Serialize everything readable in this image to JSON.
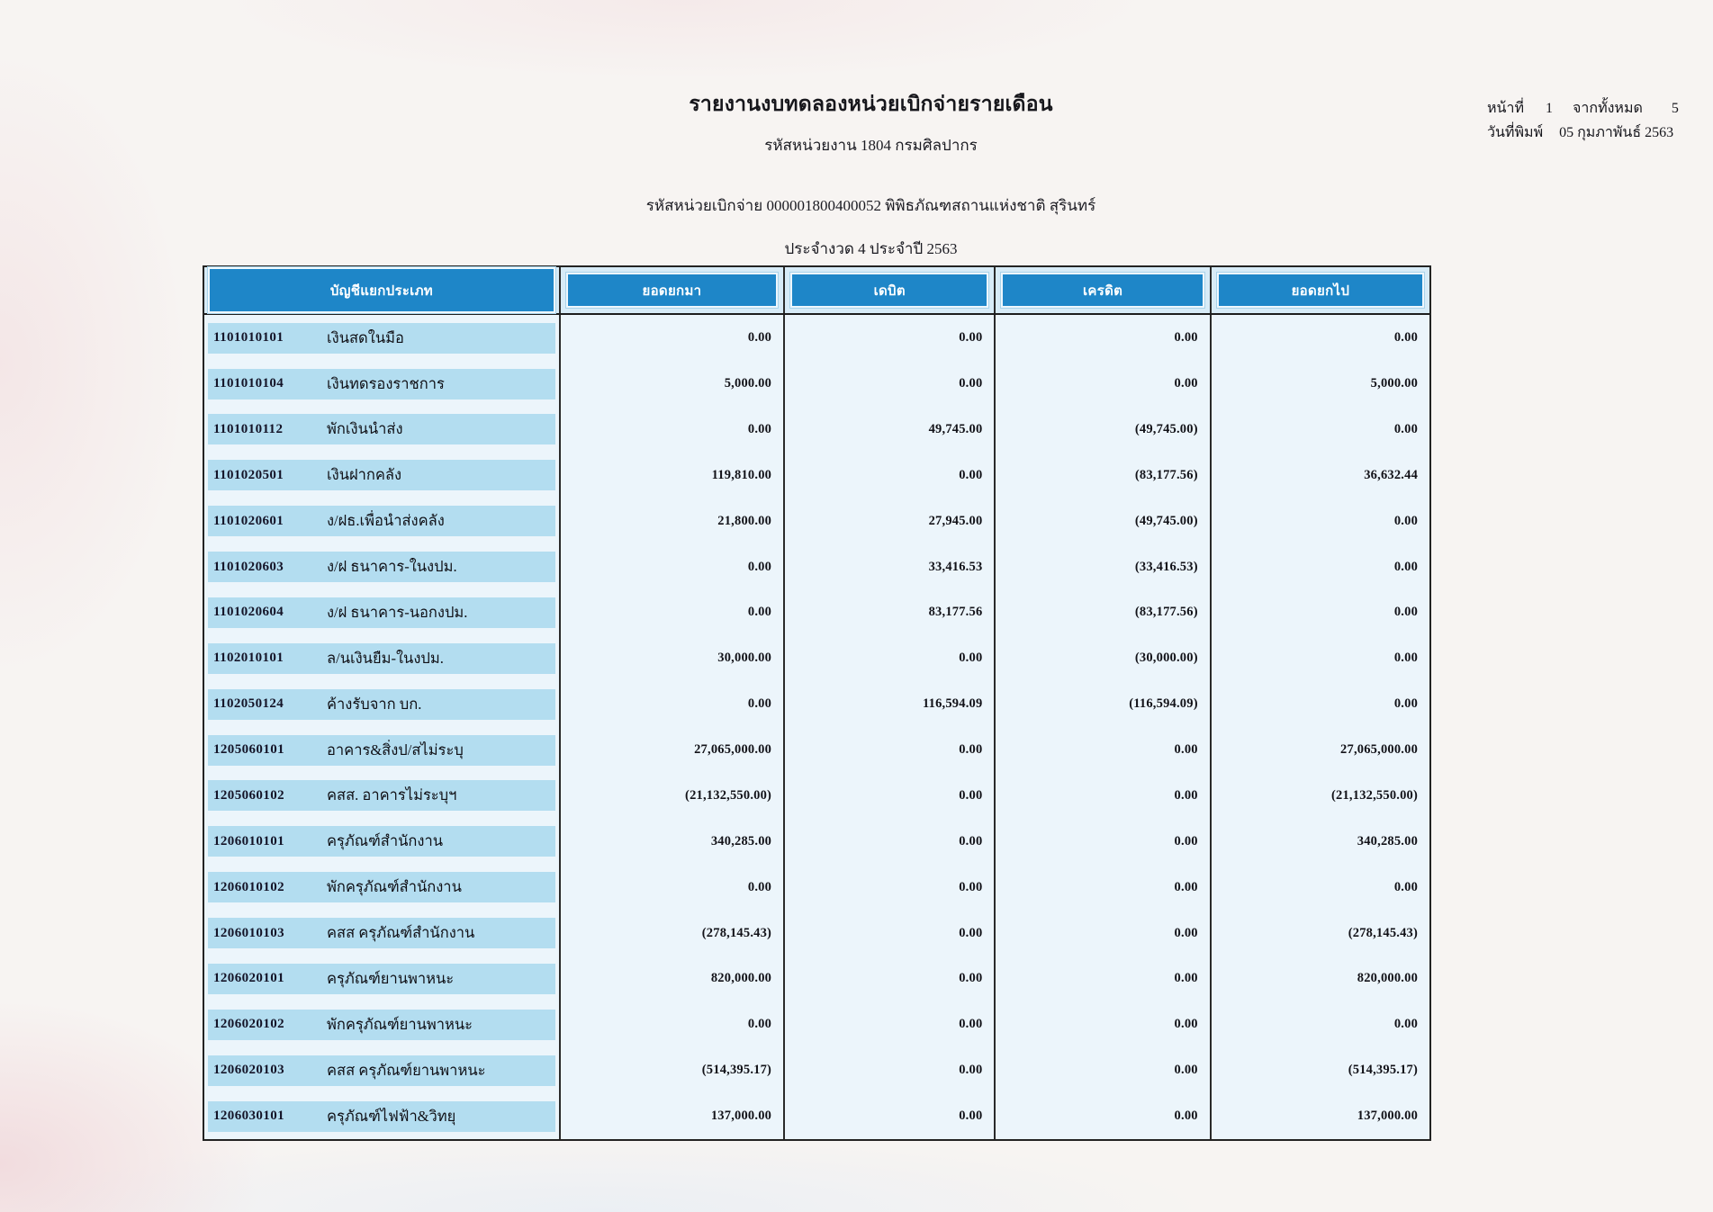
{
  "page": {
    "title": "รายงานงบทดลองหน่วยเบิกจ่ายรายเดือน",
    "agency_line": "รหัสหน่วยงาน 1804 กรมศิลปากร",
    "unit_line": "รหัสหน่วยเบิกจ่าย 000001800400052 พิพิธภัณฑสถานแห่งชาติ สุรินทร์",
    "period_line": "ประจำงวด 4 ประจำปี 2563",
    "page_info": {
      "page_label": "หน้าที่",
      "page_number": "1",
      "total_label": "จากทั้งหมด",
      "total_pages": "5",
      "print_date_label": "วันที่พิมพ์",
      "print_date": "05 กุมภาพันธ์ 2563"
    }
  },
  "colors": {
    "header_bar_blue": "#1e86c8",
    "header_cell_bg": "#d7ebf7",
    "row_band_blue": "#b3ddf0",
    "table_bg": "#ecf5fb",
    "border_black": "#232323",
    "paper_bg": "#f7f4f2"
  },
  "table": {
    "headers": [
      "บัญชีแยกประเภท",
      "ยอดยกมา",
      "เดบิต",
      "เครดิต",
      "ยอดยกไป"
    ],
    "rows": [
      {
        "code": "1101010101",
        "name": "เงินสดในมือ",
        "carry_forward": "0.00",
        "debit": "0.00",
        "credit": "0.00",
        "balance": "0.00"
      },
      {
        "code": "1101010104",
        "name": "เงินทดรองราชการ",
        "carry_forward": "5,000.00",
        "debit": "0.00",
        "credit": "0.00",
        "balance": "5,000.00"
      },
      {
        "code": "1101010112",
        "name": "พักเงินนำส่ง",
        "carry_forward": "0.00",
        "debit": "49,745.00",
        "credit": "(49,745.00)",
        "balance": "0.00"
      },
      {
        "code": "1101020501",
        "name": "เงินฝากคลัง",
        "carry_forward": "119,810.00",
        "debit": "0.00",
        "credit": "(83,177.56)",
        "balance": "36,632.44"
      },
      {
        "code": "1101020601",
        "name": "ง/ฝธ.เพื่อนำส่งคลัง",
        "carry_forward": "21,800.00",
        "debit": "27,945.00",
        "credit": "(49,745.00)",
        "balance": "0.00"
      },
      {
        "code": "1101020603",
        "name": "ง/ฝ ธนาคาร-ในงปม.",
        "carry_forward": "0.00",
        "debit": "33,416.53",
        "credit": "(33,416.53)",
        "balance": "0.00"
      },
      {
        "code": "1101020604",
        "name": "ง/ฝ ธนาคาร-นอกงปม.",
        "carry_forward": "0.00",
        "debit": "83,177.56",
        "credit": "(83,177.56)",
        "balance": "0.00"
      },
      {
        "code": "1102010101",
        "name": "ล/นเงินยืม-ในงปม.",
        "carry_forward": "30,000.00",
        "debit": "0.00",
        "credit": "(30,000.00)",
        "balance": "0.00"
      },
      {
        "code": "1102050124",
        "name": "ค้างรับจาก บก.",
        "carry_forward": "0.00",
        "debit": "116,594.09",
        "credit": "(116,594.09)",
        "balance": "0.00"
      },
      {
        "code": "1205060101",
        "name": "อาคาร&สิ่งป/สไม่ระบุ",
        "carry_forward": "27,065,000.00",
        "debit": "0.00",
        "credit": "0.00",
        "balance": "27,065,000.00"
      },
      {
        "code": "1205060102",
        "name": "คสส. อาคารไม่ระบุฯ",
        "carry_forward": "(21,132,550.00)",
        "debit": "0.00",
        "credit": "0.00",
        "balance": "(21,132,550.00)"
      },
      {
        "code": "1206010101",
        "name": "ครุภัณฑ์สำนักงาน",
        "carry_forward": "340,285.00",
        "debit": "0.00",
        "credit": "0.00",
        "balance": "340,285.00"
      },
      {
        "code": "1206010102",
        "name": "พักครุภัณฑ์สำนักงาน",
        "carry_forward": "0.00",
        "debit": "0.00",
        "credit": "0.00",
        "balance": "0.00"
      },
      {
        "code": "1206010103",
        "name": "คสส ครุภัณฑ์สำนักงาน",
        "carry_forward": "(278,145.43)",
        "debit": "0.00",
        "credit": "0.00",
        "balance": "(278,145.43)"
      },
      {
        "code": "1206020101",
        "name": "ครุภัณฑ์ยานพาหนะ",
        "carry_forward": "820,000.00",
        "debit": "0.00",
        "credit": "0.00",
        "balance": "820,000.00"
      },
      {
        "code": "1206020102",
        "name": "พักครุภัณฑ์ยานพาหนะ",
        "carry_forward": "0.00",
        "debit": "0.00",
        "credit": "0.00",
        "balance": "0.00"
      },
      {
        "code": "1206020103",
        "name": "คสส ครุภัณฑ์ยานพาหนะ",
        "carry_forward": "(514,395.17)",
        "debit": "0.00",
        "credit": "0.00",
        "balance": "(514,395.17)"
      },
      {
        "code": "1206030101",
        "name": "ครุภัณฑ์ไฟฟ้า&วิทยุ",
        "carry_forward": "137,000.00",
        "debit": "0.00",
        "credit": "0.00",
        "balance": "137,000.00"
      }
    ]
  }
}
